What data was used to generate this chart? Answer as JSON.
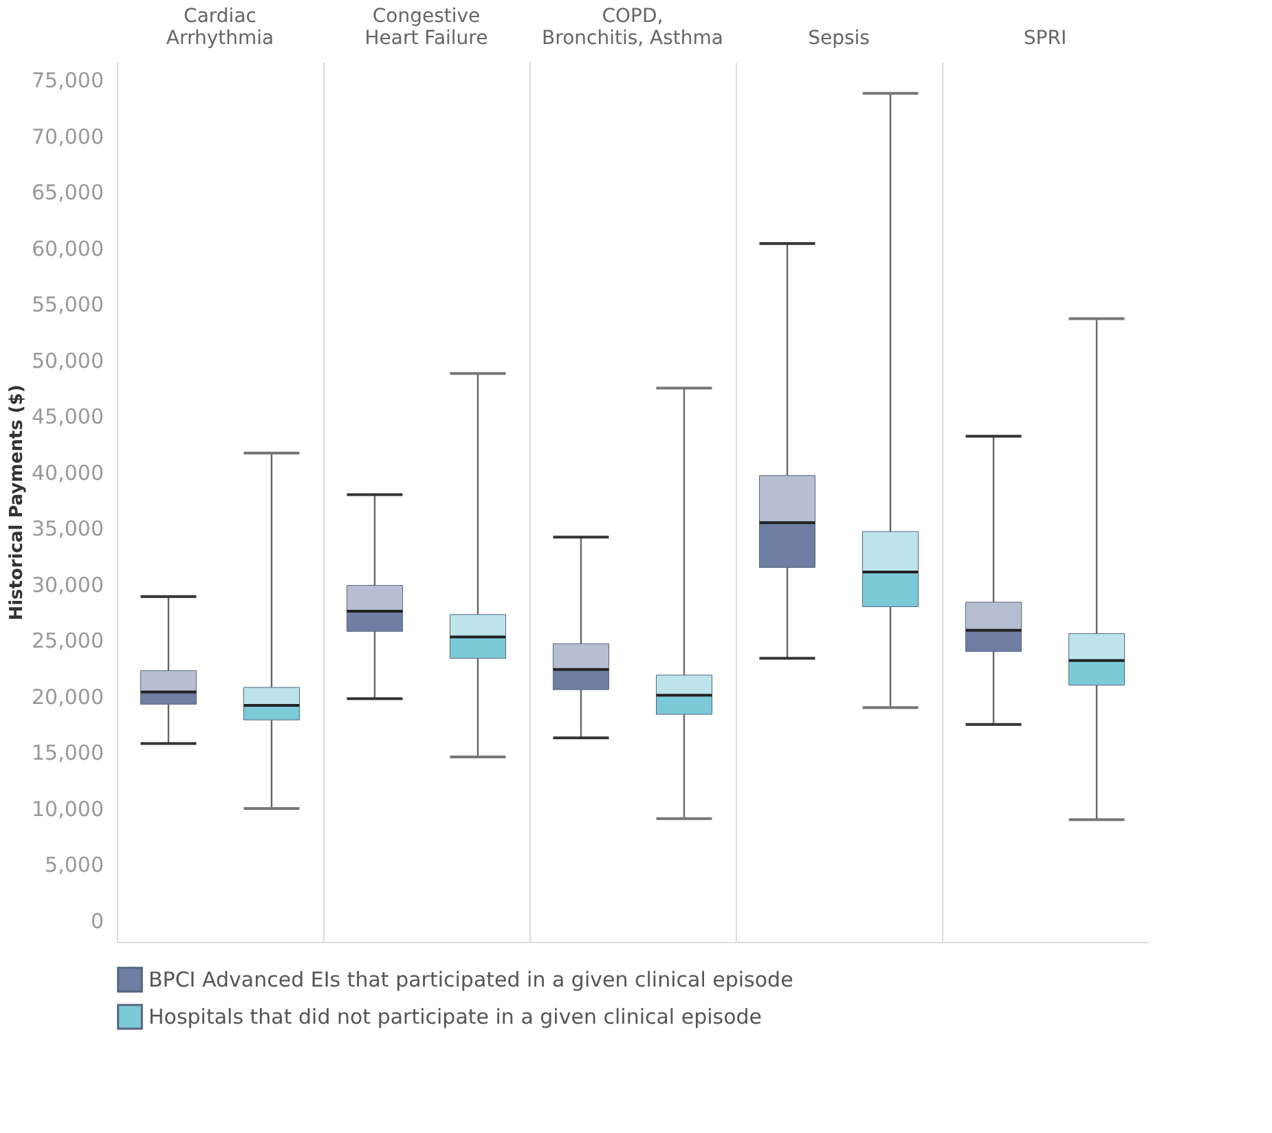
{
  "chart_data": {
    "type": "box",
    "ylabel": "Historical Payments ($)",
    "categories": [
      "Cardiac Arrhythmia",
      "Congestive Heart Failure",
      "COPD, Bronchitis, Asthma",
      "Sepsis",
      "SPRI"
    ],
    "series": [
      {
        "name": "BPCI Advanced EIs that participated in a given clinical episode",
        "color": "#6e7fa3",
        "boxes": [
          {
            "low": 15800,
            "q1": 19300,
            "median": 20400,
            "q3": 22300,
            "high": 28900
          },
          {
            "low": 19800,
            "q1": 25800,
            "median": 27600,
            "q3": 29900,
            "high": 38000
          },
          {
            "low": 16300,
            "q1": 20600,
            "median": 22400,
            "q3": 24700,
            "high": 34200
          },
          {
            "low": 23400,
            "q1": 31500,
            "median": 35500,
            "q3": 39700,
            "high": 60400
          },
          {
            "low": 17500,
            "q1": 24000,
            "median": 25900,
            "q3": 28400,
            "high": 43200
          }
        ]
      },
      {
        "name": "Hospitals that did not participate in a given clinical episode",
        "color": "#7ccad8",
        "boxes": [
          {
            "low": 10000,
            "q1": 17900,
            "median": 19200,
            "q3": 20800,
            "high": 41700
          },
          {
            "low": 14600,
            "q1": 23400,
            "median": 25300,
            "q3": 27300,
            "high": 48800
          },
          {
            "low": 9100,
            "q1": 18400,
            "median": 20100,
            "q3": 21900,
            "high": 47500
          },
          {
            "low": 19000,
            "q1": 28000,
            "median": 31100,
            "q3": 34700,
            "high": 73800
          },
          {
            "low": 9000,
            "q1": 21000,
            "median": 23200,
            "q3": 25600,
            "high": 53700
          }
        ]
      }
    ],
    "ylim": [
      -1900,
      76600
    ],
    "yticks": [
      0,
      {
        "value": 5000,
        "label": "5,000"
      },
      {
        "value": 10000,
        "label": "10,000"
      },
      {
        "value": 15000,
        "label": "15,000"
      },
      {
        "value": 20000,
        "label": "20,000"
      },
      {
        "value": 25000,
        "label": "25,000"
      },
      {
        "value": 30000,
        "label": "30,000"
      },
      {
        "value": 35000,
        "label": "35,000"
      },
      {
        "value": 40000,
        "label": "40,000"
      },
      {
        "value": 45000,
        "label": "45,000"
      },
      {
        "value": 50000,
        "label": "50,000"
      },
      {
        "value": 55000,
        "label": "55,000"
      },
      {
        "value": 60000,
        "label": "60,000"
      },
      {
        "value": 65000,
        "label": "65,000"
      },
      {
        "value": 70000,
        "label": "70,000"
      },
      {
        "value": 75000,
        "label": "75,000"
      }
    ],
    "grid": false,
    "legend": "bottom",
    "tick_labels": "y"
  }
}
